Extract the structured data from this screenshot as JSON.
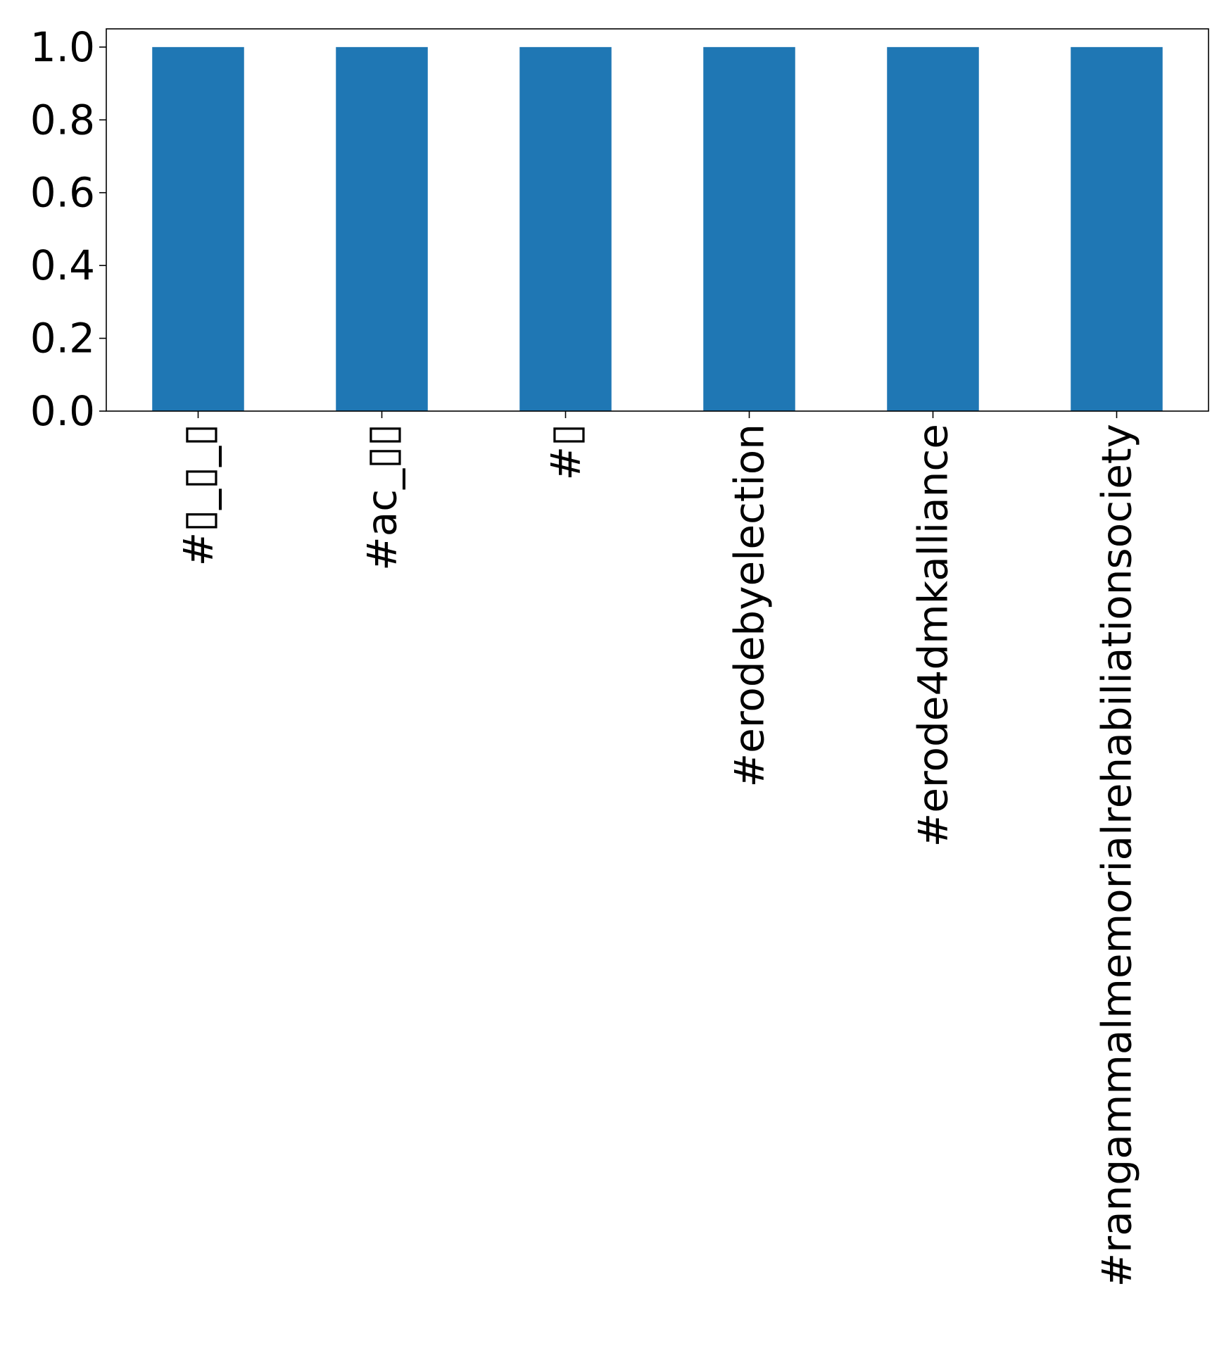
{
  "chart_data": {
    "type": "bar",
    "title": "",
    "xlabel": "",
    "ylabel": "",
    "categories": [
      "#▯_▯_▯",
      "#ac_▯▯",
      "#▯",
      "#erodebyelection",
      "#erode4dmkalliance",
      "#rangammalmemorialrehabiliationsociety"
    ],
    "values": [
      1,
      1,
      1,
      1,
      1,
      1
    ],
    "ylim": [
      0,
      1.05
    ],
    "yticks": [
      "0.0",
      "0.2",
      "0.4",
      "0.6",
      "0.8",
      "1.0"
    ],
    "grid": false,
    "bar_color": "#1f77b4"
  }
}
